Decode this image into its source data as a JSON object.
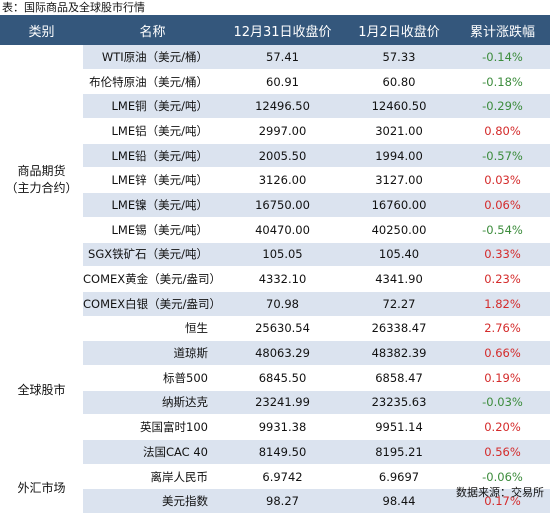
{
  "caption": "表：国际商品及全球股市行情",
  "headers": [
    "类别",
    "名称",
    "12月31日收盘价",
    "1月2日收盘价",
    "累计涨跌幅"
  ],
  "groups": [
    {
      "name_line1": "商品期货",
      "name_line2": "（主力合约）",
      "rows": [
        {
          "name": "WTI原油（美元/桶）",
          "dec31": "57.41",
          "jan2": "57.33",
          "change": "-0.14%",
          "dir": "down"
        },
        {
          "name": "布伦特原油（美元/桶）",
          "dec31": "60.91",
          "jan2": "60.80",
          "change": "-0.18%",
          "dir": "down"
        },
        {
          "name": "LME铜（美元/吨）",
          "dec31": "12496.50",
          "jan2": "12460.50",
          "change": "-0.29%",
          "dir": "down"
        },
        {
          "name": "LME铝（美元/吨）",
          "dec31": "2997.00",
          "jan2": "3021.00",
          "change": "0.80%",
          "dir": "up"
        },
        {
          "name": "LME铅（美元/吨）",
          "dec31": "2005.50",
          "jan2": "1994.00",
          "change": "-0.57%",
          "dir": "down"
        },
        {
          "name": "LME锌（美元/吨）",
          "dec31": "3126.00",
          "jan2": "3127.00",
          "change": "0.03%",
          "dir": "up"
        },
        {
          "name": "LME镍（美元/吨）",
          "dec31": "16750.00",
          "jan2": "16760.00",
          "change": "0.06%",
          "dir": "up"
        },
        {
          "name": "LME锡（美元/吨）",
          "dec31": "40470.00",
          "jan2": "40250.00",
          "change": "-0.54%",
          "dir": "down"
        },
        {
          "name": "SGX铁矿石（美元/吨）",
          "dec31": "105.05",
          "jan2": "105.40",
          "change": "0.33%",
          "dir": "up"
        },
        {
          "name": "COMEX黄金（美元/盎司）",
          "dec31": "4332.10",
          "jan2": "4341.90",
          "change": "0.23%",
          "dir": "up"
        },
        {
          "name": "COMEX白银（美元/盎司）",
          "dec31": "70.98",
          "jan2": "72.27",
          "change": "1.82%",
          "dir": "up"
        }
      ]
    },
    {
      "name_line1": "全球股市",
      "name_line2": "",
      "rows": [
        {
          "name": "恒生",
          "dec31": "25630.54",
          "jan2": "26338.47",
          "change": "2.76%",
          "dir": "up"
        },
        {
          "name": "道琼斯",
          "dec31": "48063.29",
          "jan2": "48382.39",
          "change": "0.66%",
          "dir": "up"
        },
        {
          "name": "标普500",
          "dec31": "6845.50",
          "jan2": "6858.47",
          "change": "0.19%",
          "dir": "up"
        },
        {
          "name": "纳斯达克",
          "dec31": "23241.99",
          "jan2": "23235.63",
          "change": "-0.03%",
          "dir": "down"
        },
        {
          "name": "英国富时100",
          "dec31": "9931.38",
          "jan2": "9951.14",
          "change": "0.20%",
          "dir": "up"
        },
        {
          "name": "法国CAC 40",
          "dec31": "8149.50",
          "jan2": "8195.21",
          "change": "0.56%",
          "dir": "up"
        }
      ]
    },
    {
      "name_line1": "外汇市场",
      "name_line2": "",
      "rows": [
        {
          "name": "离岸人民币",
          "dec31": "6.9742",
          "jan2": "6.9697",
          "change": "-0.06%",
          "dir": "down"
        },
        {
          "name": "美元指数",
          "dec31": "98.27",
          "jan2": "98.44",
          "change": "0.17%",
          "dir": "up"
        }
      ]
    }
  ],
  "source": "数据来源：交易所",
  "colors": {
    "header_bg": "#34577c",
    "stripe": "#dbe3ef",
    "up": "#d42b2b",
    "down": "#3c8c3c"
  }
}
